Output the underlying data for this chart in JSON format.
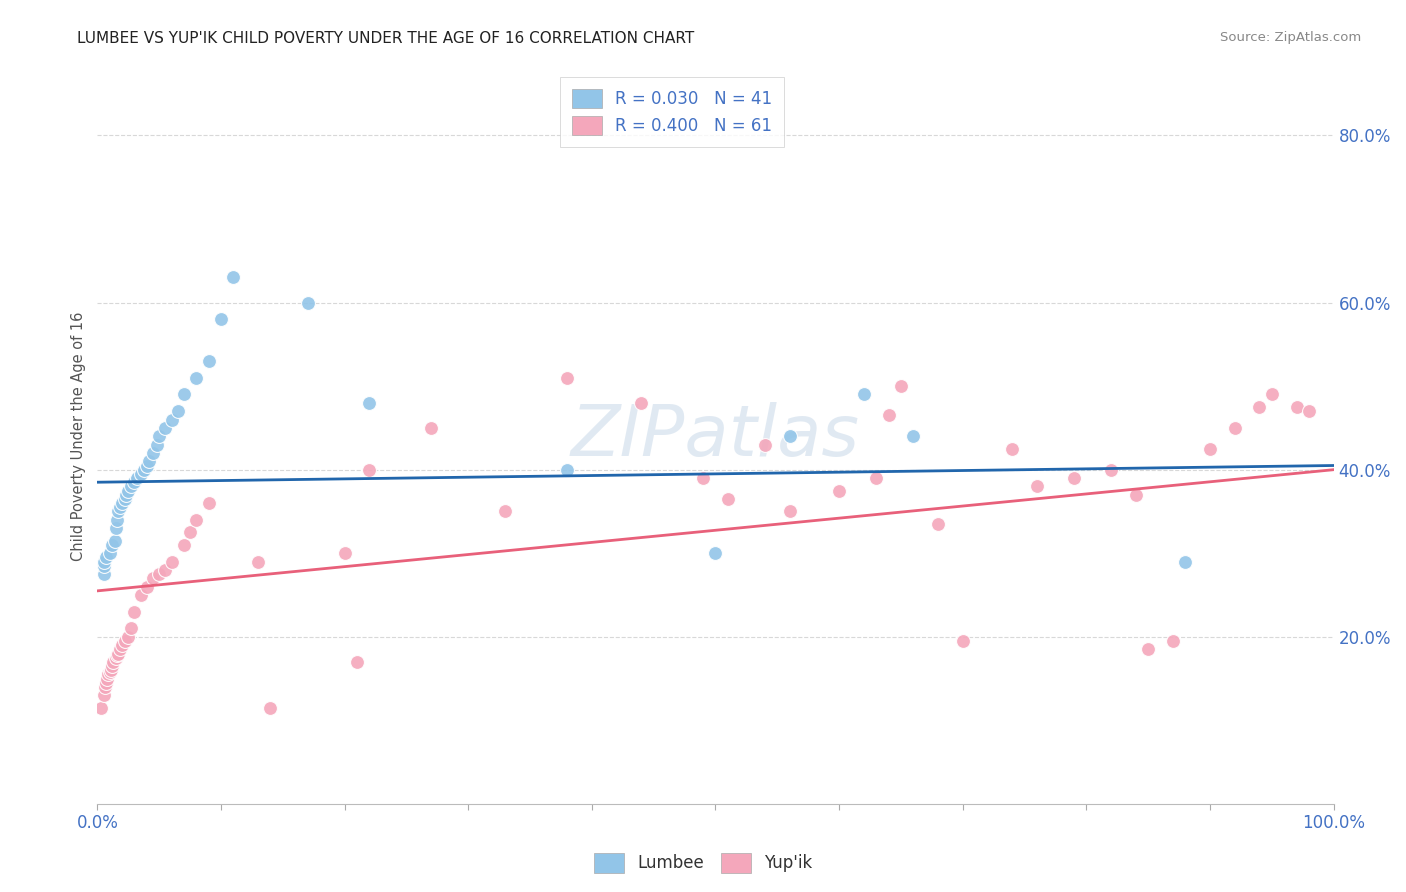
{
  "title": "LUMBEE VS YUP'IK CHILD POVERTY UNDER THE AGE OF 16 CORRELATION CHART",
  "source": "Source: ZipAtlas.com",
  "ylabel": "Child Poverty Under the Age of 16",
  "ytick_values": [
    0.2,
    0.4,
    0.6,
    0.8
  ],
  "xlim": [
    0.0,
    1.0
  ],
  "ylim": [
    0.0,
    0.88
  ],
  "watermark": "ZIPatlas",
  "lumbee_color": "#92c5e8",
  "yupik_color": "#f4a7bb",
  "lumbee_line_color": "#2166ac",
  "yupik_line_color": "#e8607a",
  "lumbee_R": 0.03,
  "lumbee_N": 41,
  "yupik_R": 0.4,
  "yupik_N": 61,
  "lumbee_x": [
    0.005,
    0.005,
    0.005,
    0.007,
    0.01,
    0.012,
    0.014,
    0.015,
    0.016,
    0.017,
    0.018,
    0.02,
    0.022,
    0.023,
    0.025,
    0.027,
    0.03,
    0.032,
    0.035,
    0.038,
    0.04,
    0.042,
    0.045,
    0.048,
    0.05,
    0.055,
    0.06,
    0.065,
    0.07,
    0.08,
    0.09,
    0.1,
    0.11,
    0.17,
    0.22,
    0.38,
    0.5,
    0.56,
    0.62,
    0.66,
    0.88
  ],
  "lumbee_y": [
    0.275,
    0.285,
    0.29,
    0.295,
    0.3,
    0.31,
    0.315,
    0.33,
    0.34,
    0.35,
    0.355,
    0.36,
    0.365,
    0.37,
    0.375,
    0.38,
    0.385,
    0.39,
    0.395,
    0.4,
    0.405,
    0.41,
    0.42,
    0.43,
    0.44,
    0.45,
    0.46,
    0.47,
    0.49,
    0.51,
    0.53,
    0.58,
    0.63,
    0.6,
    0.48,
    0.4,
    0.3,
    0.44,
    0.49,
    0.44,
    0.29
  ],
  "yupik_x": [
    0.003,
    0.005,
    0.006,
    0.007,
    0.008,
    0.009,
    0.01,
    0.011,
    0.012,
    0.013,
    0.015,
    0.016,
    0.017,
    0.018,
    0.02,
    0.022,
    0.025,
    0.027,
    0.03,
    0.035,
    0.04,
    0.045,
    0.05,
    0.055,
    0.06,
    0.07,
    0.075,
    0.08,
    0.09,
    0.13,
    0.14,
    0.2,
    0.21,
    0.22,
    0.27,
    0.33,
    0.38,
    0.44,
    0.49,
    0.51,
    0.54,
    0.56,
    0.6,
    0.63,
    0.64,
    0.65,
    0.68,
    0.7,
    0.74,
    0.76,
    0.79,
    0.82,
    0.84,
    0.85,
    0.87,
    0.9,
    0.92,
    0.94,
    0.95,
    0.97,
    0.98
  ],
  "yupik_y": [
    0.115,
    0.13,
    0.14,
    0.145,
    0.15,
    0.155,
    0.158,
    0.16,
    0.165,
    0.17,
    0.175,
    0.178,
    0.18,
    0.185,
    0.19,
    0.195,
    0.2,
    0.21,
    0.23,
    0.25,
    0.26,
    0.27,
    0.275,
    0.28,
    0.29,
    0.31,
    0.325,
    0.34,
    0.36,
    0.29,
    0.115,
    0.3,
    0.17,
    0.4,
    0.45,
    0.35,
    0.51,
    0.48,
    0.39,
    0.365,
    0.43,
    0.35,
    0.375,
    0.39,
    0.465,
    0.5,
    0.335,
    0.195,
    0.425,
    0.38,
    0.39,
    0.4,
    0.37,
    0.185,
    0.195,
    0.425,
    0.45,
    0.475,
    0.49,
    0.475,
    0.47
  ],
  "background_color": "#ffffff",
  "grid_color": "#d8d8d8",
  "title_fontsize": 11,
  "axis_label_color": "#4472c4",
  "legend_fontsize": 12,
  "marker_size": 100
}
